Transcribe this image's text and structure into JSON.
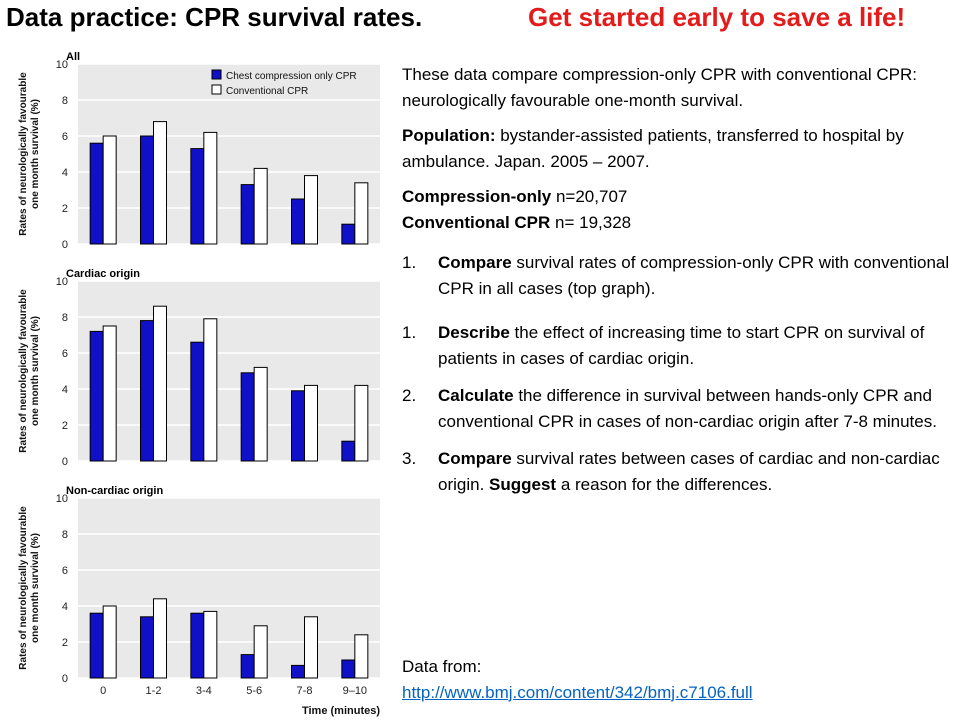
{
  "header": {
    "title": "Data practice: CPR survival rates.",
    "tagline": "Get started early to save a life!"
  },
  "colors": {
    "compression_only": "#1010c8",
    "conventional": "#ffffff",
    "plot_bg": "#e9e9e9",
    "tagline": "#e41b1b",
    "link": "#0563c1"
  },
  "text": {
    "intro": "These data compare compression-only CPR with conventional CPR: neurologically favourable one-month survival.",
    "population_label": "Population:",
    "population_text": " bystander-assisted patients, transferred to hospital by ambulance. Japan. 2005 – 2007.",
    "compression_label": "Compression-only",
    "compression_n": " n=20,707",
    "conventional_label": "Conventional CPR",
    "conventional_n": " n= 19,328",
    "questions": [
      {
        "num": "1.",
        "verb": "Compare",
        "rest": " survival rates of compression-only CPR with conventional CPR in all cases (top graph)."
      },
      {
        "num": "1.",
        "verb": "Describe",
        "rest": " the effect of increasing time to start CPR on survival of patients in cases of cardiac origin."
      },
      {
        "num": "2.",
        "verb": "Calculate",
        "rest": " the difference in survival between hands-only CPR and conventional CPR in cases of non-cardiac origin after 7-8 minutes."
      },
      {
        "num": "3.",
        "verb": "Compare",
        "rest": " survival rates between cases of cardiac and non-cardiac origin. ",
        "verb2": "Suggest",
        "rest2": " a reason for the differences."
      }
    ],
    "source_label": "Data from:",
    "source_url": "http://www.bmj.com/content/342/bmj.c7106.full"
  },
  "chart_data": [
    {
      "type": "bar",
      "title": "All",
      "ylabel": "Rates of neurologically favourable one month survival (%)",
      "ylim": [
        0,
        10
      ],
      "yticks": [
        0,
        2,
        4,
        6,
        8,
        10
      ],
      "categories": [
        "0",
        "1-2",
        "3-4",
        "5-6",
        "7-8",
        "9–10"
      ],
      "legend": "top-right",
      "series": [
        {
          "name": "Chest compression only CPR",
          "values": [
            5.6,
            6.0,
            5.3,
            3.3,
            2.5,
            1.1
          ]
        },
        {
          "name": "Conventional CPR",
          "values": [
            6.0,
            6.8,
            6.2,
            4.2,
            3.8,
            3.4
          ]
        }
      ]
    },
    {
      "type": "bar",
      "title": "Cardiac origin",
      "ylabel": "Rates of neurologically favourable one month survival (%)",
      "ylim": [
        0,
        10
      ],
      "yticks": [
        0,
        2,
        4,
        6,
        8,
        10
      ],
      "categories": [
        "0",
        "1-2",
        "3-4",
        "5-6",
        "7-8",
        "9–10"
      ],
      "series": [
        {
          "name": "Chest compression only CPR",
          "values": [
            7.2,
            7.8,
            6.6,
            4.9,
            3.9,
            1.1
          ]
        },
        {
          "name": "Conventional CPR",
          "values": [
            7.5,
            8.6,
            7.9,
            5.2,
            4.2,
            4.2
          ]
        }
      ]
    },
    {
      "type": "bar",
      "title": "Non-cardiac origin",
      "ylabel": "Rates of neurologically favourable one month survival (%)",
      "xlabel": "Time (minutes)",
      "ylim": [
        0,
        10
      ],
      "yticks": [
        0,
        2,
        4,
        6,
        8,
        10
      ],
      "categories": [
        "0",
        "1-2",
        "3-4",
        "5-6",
        "7-8",
        "9–10"
      ],
      "series": [
        {
          "name": "Chest compression only CPR",
          "values": [
            3.6,
            3.4,
            3.6,
            1.3,
            0.7,
            1.0
          ]
        },
        {
          "name": "Conventional CPR",
          "values": [
            4.0,
            4.4,
            3.7,
            2.9,
            3.4,
            2.4
          ]
        }
      ]
    }
  ]
}
